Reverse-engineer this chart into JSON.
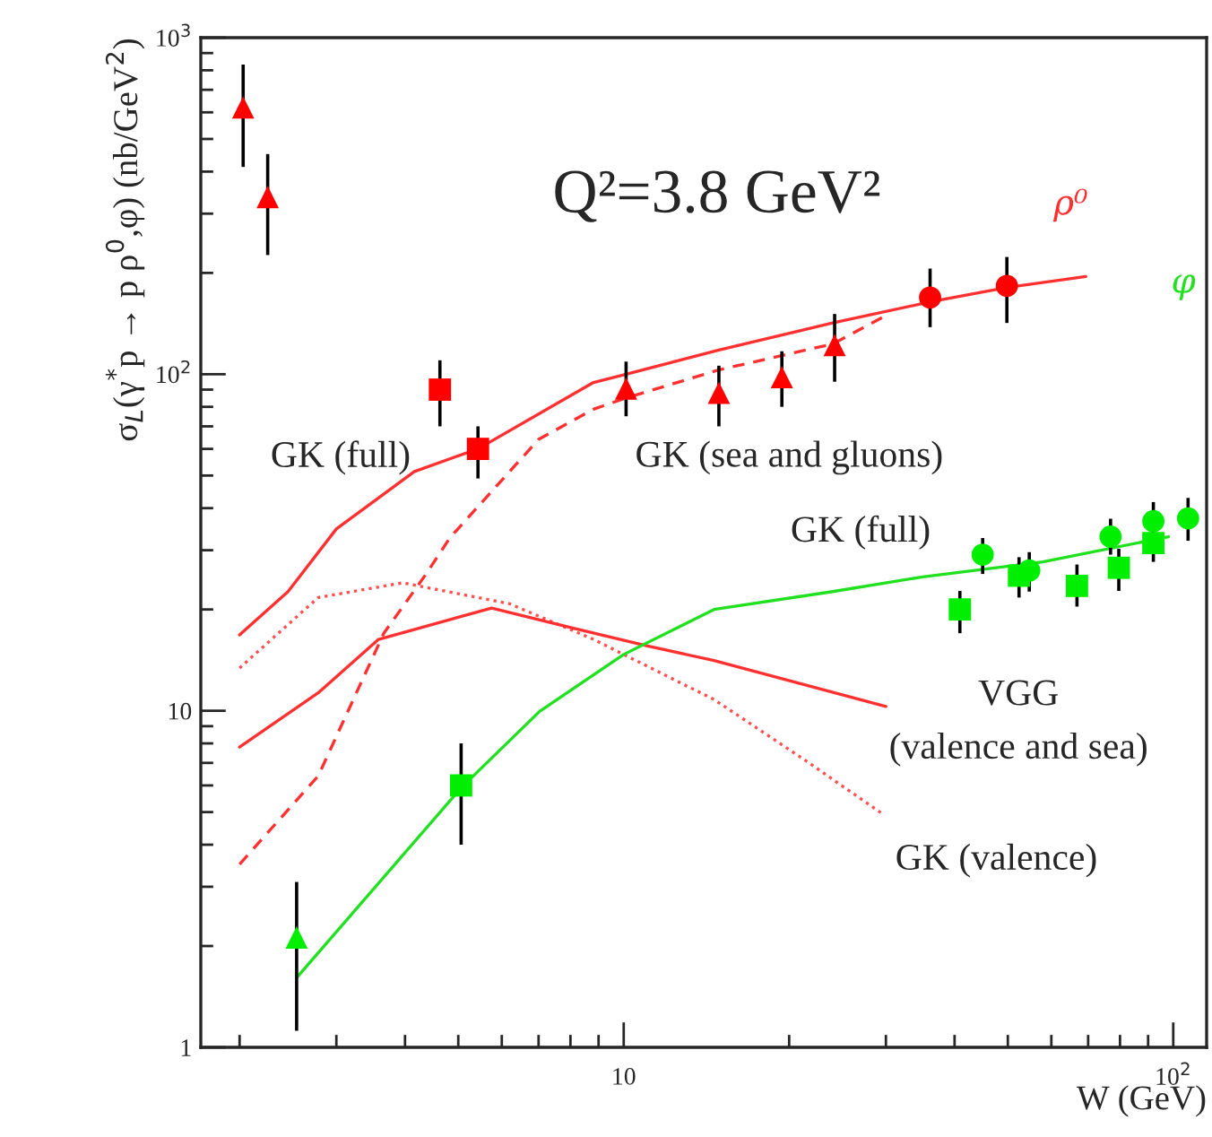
{
  "chart_data": {
    "type": "scatter",
    "log": "xy",
    "xlabel": "W (GeV)",
    "ylabel": "σ$_{L}$(γ$^{*}$p → p ρ$^{0}$,φ) (nb/GeV$^{2}$)",
    "xlim": [
      1.7,
      115
    ],
    "ylim": [
      1,
      1000
    ],
    "xticks": [
      {
        "value": 10,
        "label": "10"
      },
      {
        "value": 100,
        "label": "10$^{2}$"
      }
    ],
    "yticks": [
      {
        "value": 1,
        "label": "1"
      },
      {
        "value": 10,
        "label": "10"
      },
      {
        "value": 100,
        "label": "10$^{2}$"
      },
      {
        "value": 1000,
        "label": "10$^{3}$"
      }
    ],
    "grid": false,
    "legend": false,
    "annotations": [
      "Q²=3.8 GeV²",
      "GK (full)",
      "GK (sea and gluons)",
      "GK (full)",
      "VGG",
      "(valence and sea)",
      "GK (valence)"
    ],
    "series": [
      {
        "type": "line",
        "name": "ρ⁰",
        "color": "#ff3030",
        "line_style": "solid",
        "x": [
          2.0,
          2.45,
          3.0,
          4.16,
          5.43,
          8.81,
          10.1,
          14.9,
          24.0,
          36.1,
          49.8,
          69.3
        ],
        "values": [
          16.8,
          22.6,
          34.7,
          51.4,
          60,
          94.5,
          100,
          118,
          142,
          164,
          181,
          195
        ]
      },
      {
        "type": "line",
        "color": "#ff3030",
        "line_style": "dashed",
        "x": [
          2.0,
          2.78,
          3.66,
          4.37,
          4.83,
          7.0,
          8.81,
          10.1,
          14.9,
          24.0,
          29.9
        ],
        "values": [
          3.5,
          6.4,
          17,
          25.5,
          32.7,
          64,
          78.7,
          85,
          103,
          123,
          149
        ]
      },
      {
        "type": "line",
        "color": "#ff5050",
        "line_style": "dotted",
        "x": [
          2.0,
          2.78,
          3.96,
          6.2,
          8.81,
          10.0,
          14.6,
          21.2,
          29.8
        ],
        "values": [
          13.4,
          21.7,
          24,
          20.8,
          16.3,
          14.7,
          10.8,
          7.2,
          4.9
        ]
      },
      {
        "type": "line",
        "color": "#ff3030",
        "line_style": "solid",
        "x": [
          2.0,
          2.78,
          3.58,
          5.75,
          7.98,
          11.0,
          14.6,
          30
        ],
        "values": [
          7.8,
          11.3,
          16.3,
          20.2,
          17.7,
          15.6,
          14.1,
          10.3
        ]
      },
      {
        "type": "line",
        "name": "φ",
        "color": "#20e020",
        "line_style": "solid",
        "x": [
          2.54,
          5.06,
          7.03,
          10.0,
          14.6,
          24.0,
          35.0,
          57.9,
          98
        ],
        "values": [
          1.61,
          5.9,
          9.96,
          14.7,
          20,
          22.6,
          25,
          27.7,
          32.9
        ]
      },
      {
        "marker": "triangle",
        "color": "#ff0000",
        "x": [
          2.03,
          2.25,
          10.1,
          14.9,
          19.4,
          24.2
        ],
        "values": [
          620,
          336,
          90.6,
          88,
          98,
          122
        ],
        "errors": [
          [
            413,
            832
          ],
          [
            226,
            451
          ],
          [
            75,
            109
          ],
          [
            70,
            106
          ],
          [
            80,
            117
          ],
          [
            95,
            151
          ]
        ]
      },
      {
        "marker": "square",
        "color": "#ff0000",
        "x": [
          4.63,
          5.43
        ],
        "values": [
          90,
          60
        ],
        "errors": [
          [
            70,
            110
          ],
          [
            49,
            70
          ]
        ]
      },
      {
        "marker": "circle",
        "color": "#ff0000",
        "x": [
          36.1,
          49.8
        ],
        "values": [
          169,
          183
        ],
        "errors": [
          [
            138,
            206
          ],
          [
            142,
            223
          ]
        ]
      },
      {
        "marker": "triangle",
        "color": "#00ee00",
        "x": [
          2.54
        ],
        "values": [
          2.12
        ],
        "errors": [
          [
            1.12,
            3.1
          ]
        ]
      },
      {
        "marker": "square",
        "color": "#00ee00",
        "x": [
          5.06
        ],
        "values": [
          6.0
        ],
        "errors": [
          [
            4.0,
            8.0
          ]
        ]
      },
      {
        "marker": "circle",
        "color": "#00ee00",
        "x": [
          45,
          54.7,
          76.9,
          92,
          106.4
        ],
        "values": [
          29.1,
          26.1,
          32.9,
          36.6,
          37.3
        ],
        "errors": [
          [
            25.5,
            32.6
          ],
          [
            22.6,
            29.6
          ],
          [
            29.1,
            37.2
          ],
          [
            32.7,
            41.7
          ],
          [
            32,
            42.9
          ]
        ]
      },
      {
        "marker": "square",
        "color": "#00ee00",
        "x": [
          40.9,
          52.4,
          66.8,
          79.6,
          92
        ],
        "values": [
          20,
          25.2,
          23.5,
          26.6,
          31.5
        ],
        "errors": [
          [
            17,
            22.7
          ],
          [
            21.7,
            28.6
          ],
          [
            20.4,
            27.2
          ],
          [
            22.7,
            30.3
          ],
          [
            27.7,
            31.5
          ]
        ]
      }
    ]
  }
}
